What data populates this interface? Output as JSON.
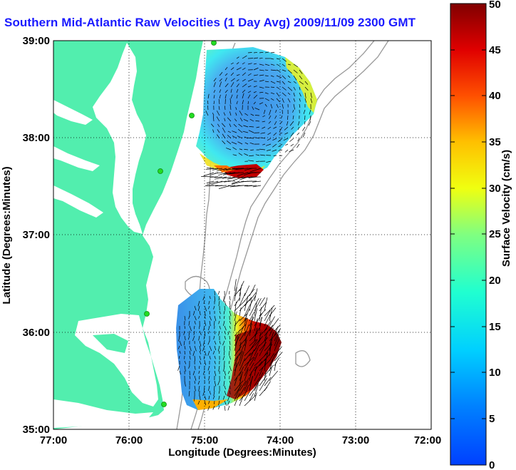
{
  "title": "Southern Mid-Atlantic Raw Velocities (1 Day Avg) 2009/11/09 2300 GMT",
  "map": {
    "xlabel": "Longitude (Degrees:Minutes)",
    "ylabel": "Latitude (Degrees:Minutes)",
    "x_ticks": [
      "77:00",
      "76:00",
      "75:00",
      "74:00",
      "73:00",
      "72:00"
    ],
    "y_ticks": [
      "39:00",
      "38:00",
      "37:00",
      "36:00",
      "35:00"
    ],
    "xlim": [
      -77,
      -72
    ],
    "ylim": [
      35,
      39
    ],
    "grid": "dotted",
    "land_color": "#52eeae",
    "ocean_color": "#ffffff",
    "bathymetry_color": "#999999",
    "station_marker_color": "#22dd22"
  },
  "colorbar": {
    "label": "Surface Velocity (cm/s)",
    "ticks": [
      "50",
      "45",
      "40",
      "35",
      "30",
      "25",
      "20",
      "15",
      "10",
      "5",
      "0"
    ],
    "range": [
      0,
      50
    ],
    "colormap": "jet"
  }
}
